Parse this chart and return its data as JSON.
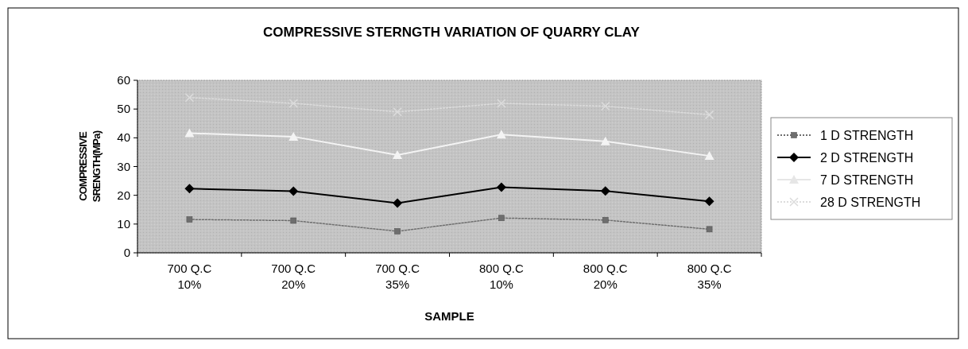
{
  "chart_data": {
    "type": "line",
    "title": "COMPRESSIVE STERNGTH VARIATION OF QUARRY CLAY",
    "xlabel": "SAMPLE",
    "ylabel": "COMPRESSIVE SRENGTH(MPa)",
    "categories": [
      "700 Q.C 10%",
      "700 Q.C 20%",
      "700 Q.C 35%",
      "800 Q.C 10%",
      "800 Q.C 20%",
      "800 Q.C 35%"
    ],
    "ylim": [
      0,
      60
    ],
    "yticks": [
      0,
      10,
      20,
      30,
      40,
      50,
      60
    ],
    "legend": "right",
    "grid": false,
    "series": [
      {
        "name": "1 D STRENGTH",
        "color": "#6e6e6e",
        "marker": "square",
        "line_style": "dotted",
        "values": [
          11.6,
          11.2,
          7.5,
          12.1,
          11.4,
          8.2
        ]
      },
      {
        "name": "2 D STRENGTH",
        "color": "#000000",
        "marker": "diamond",
        "line_style": "solid",
        "values": [
          22.3,
          21.4,
          17.3,
          22.8,
          21.5,
          17.9
        ]
      },
      {
        "name": "7 D STRENGTH",
        "color": "#f4f4f4",
        "marker": "triangle",
        "line_style": "solid",
        "values": [
          41.6,
          40.4,
          34,
          41.1,
          38.8,
          33.7
        ]
      },
      {
        "name": "28 D STRENGTH",
        "color": "#dcdcdc",
        "marker": "cross",
        "line_style": "dotted",
        "values": [
          54,
          52,
          49,
          52,
          51,
          48
        ]
      }
    ]
  }
}
